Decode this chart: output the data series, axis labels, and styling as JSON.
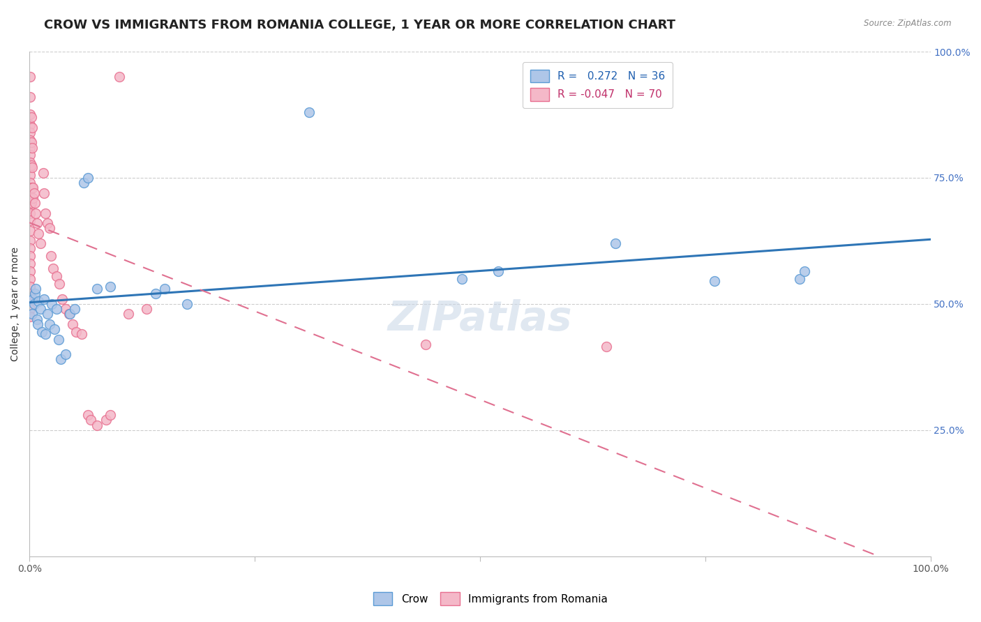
{
  "title": "CROW VS IMMIGRANTS FROM ROMANIA COLLEGE, 1 YEAR OR MORE CORRELATION CHART",
  "source": "Source: ZipAtlas.com",
  "ylabel": "College, 1 year or more",
  "xlim": [
    0,
    1
  ],
  "ylim": [
    0,
    1
  ],
  "legend_entries": [
    {
      "label": "R =   0.272   N = 36",
      "color_face": "#aec6e8",
      "color_edge": "#5b9bd5"
    },
    {
      "label": "R = -0.047   N = 70",
      "color_face": "#f4b8c8",
      "color_edge": "#e87090"
    }
  ],
  "watermark": "ZIPatlas",
  "blue_scatter": [
    [
      0.003,
      0.48
    ],
    [
      0.004,
      0.51
    ],
    [
      0.005,
      0.5
    ],
    [
      0.006,
      0.52
    ],
    [
      0.007,
      0.53
    ],
    [
      0.008,
      0.47
    ],
    [
      0.009,
      0.46
    ],
    [
      0.01,
      0.505
    ],
    [
      0.012,
      0.49
    ],
    [
      0.014,
      0.445
    ],
    [
      0.016,
      0.51
    ],
    [
      0.018,
      0.44
    ],
    [
      0.02,
      0.48
    ],
    [
      0.022,
      0.46
    ],
    [
      0.025,
      0.5
    ],
    [
      0.028,
      0.45
    ],
    [
      0.03,
      0.49
    ],
    [
      0.032,
      0.43
    ],
    [
      0.035,
      0.39
    ],
    [
      0.04,
      0.4
    ],
    [
      0.045,
      0.48
    ],
    [
      0.05,
      0.49
    ],
    [
      0.06,
      0.74
    ],
    [
      0.065,
      0.75
    ],
    [
      0.075,
      0.53
    ],
    [
      0.09,
      0.535
    ],
    [
      0.14,
      0.52
    ],
    [
      0.15,
      0.53
    ],
    [
      0.175,
      0.5
    ],
    [
      0.31,
      0.88
    ],
    [
      0.48,
      0.55
    ],
    [
      0.52,
      0.565
    ],
    [
      0.65,
      0.62
    ],
    [
      0.76,
      0.545
    ],
    [
      0.855,
      0.55
    ],
    [
      0.86,
      0.565
    ]
  ],
  "pink_scatter": [
    [
      0.001,
      0.95
    ],
    [
      0.001,
      0.91
    ],
    [
      0.001,
      0.875
    ],
    [
      0.001,
      0.855
    ],
    [
      0.001,
      0.84
    ],
    [
      0.001,
      0.825
    ],
    [
      0.001,
      0.81
    ],
    [
      0.001,
      0.795
    ],
    [
      0.001,
      0.78
    ],
    [
      0.001,
      0.77
    ],
    [
      0.001,
      0.755
    ],
    [
      0.001,
      0.74
    ],
    [
      0.001,
      0.725
    ],
    [
      0.001,
      0.71
    ],
    [
      0.001,
      0.695
    ],
    [
      0.001,
      0.68
    ],
    [
      0.001,
      0.665
    ],
    [
      0.001,
      0.645
    ],
    [
      0.001,
      0.625
    ],
    [
      0.001,
      0.61
    ],
    [
      0.001,
      0.595
    ],
    [
      0.001,
      0.58
    ],
    [
      0.001,
      0.565
    ],
    [
      0.001,
      0.55
    ],
    [
      0.001,
      0.535
    ],
    [
      0.001,
      0.52
    ],
    [
      0.001,
      0.505
    ],
    [
      0.001,
      0.49
    ],
    [
      0.001,
      0.475
    ],
    [
      0.002,
      0.87
    ],
    [
      0.002,
      0.82
    ],
    [
      0.002,
      0.775
    ],
    [
      0.002,
      0.73
    ],
    [
      0.002,
      0.7
    ],
    [
      0.003,
      0.85
    ],
    [
      0.003,
      0.81
    ],
    [
      0.003,
      0.77
    ],
    [
      0.003,
      0.73
    ],
    [
      0.004,
      0.73
    ],
    [
      0.004,
      0.71
    ],
    [
      0.005,
      0.72
    ],
    [
      0.006,
      0.7
    ],
    [
      0.007,
      0.68
    ],
    [
      0.008,
      0.66
    ],
    [
      0.01,
      0.64
    ],
    [
      0.012,
      0.62
    ],
    [
      0.015,
      0.76
    ],
    [
      0.016,
      0.72
    ],
    [
      0.018,
      0.68
    ],
    [
      0.02,
      0.66
    ],
    [
      0.022,
      0.65
    ],
    [
      0.024,
      0.595
    ],
    [
      0.026,
      0.57
    ],
    [
      0.03,
      0.555
    ],
    [
      0.033,
      0.54
    ],
    [
      0.036,
      0.51
    ],
    [
      0.04,
      0.49
    ],
    [
      0.044,
      0.48
    ],
    [
      0.048,
      0.46
    ],
    [
      0.052,
      0.445
    ],
    [
      0.058,
      0.44
    ],
    [
      0.065,
      0.28
    ],
    [
      0.068,
      0.27
    ],
    [
      0.075,
      0.26
    ],
    [
      0.085,
      0.27
    ],
    [
      0.09,
      0.28
    ],
    [
      0.1,
      0.95
    ],
    [
      0.11,
      0.48
    ],
    [
      0.13,
      0.49
    ],
    [
      0.44,
      0.42
    ],
    [
      0.64,
      0.415
    ]
  ],
  "blue_line_color": "#2e75b6",
  "pink_line_color": "#e07090",
  "grid_color": "#cccccc",
  "bg_color": "#ffffff",
  "title_fontsize": 13,
  "axis_label_fontsize": 10,
  "tick_fontsize": 10,
  "watermark_color": "#ccd9e8",
  "watermark_alpha": 0.6
}
